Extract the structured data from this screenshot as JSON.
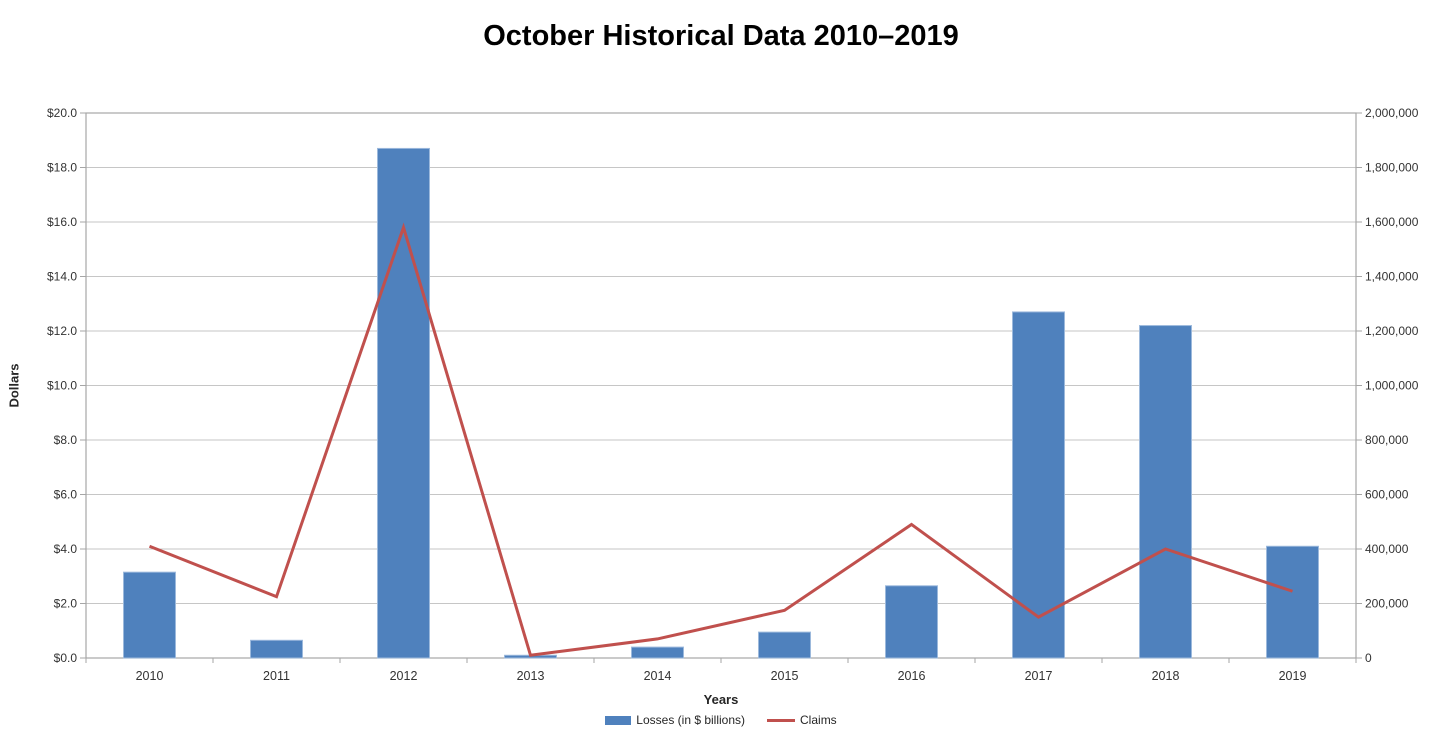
{
  "chart_data": {
    "type": "bar",
    "subtype": "combo-bar-line-dual-axis",
    "title": "October Historical Data 2010–2019",
    "xlabel": "Years",
    "categories": [
      "2010",
      "2011",
      "2012",
      "2013",
      "2014",
      "2015",
      "2016",
      "2017",
      "2018",
      "2019"
    ],
    "series": [
      {
        "name": "Losses (in $ billions)",
        "type": "bar",
        "axis": "left",
        "color": "#4F81BD",
        "values": [
          3.15,
          0.65,
          18.7,
          0.1,
          0.4,
          0.95,
          2.65,
          12.7,
          12.2,
          4.1
        ]
      },
      {
        "name": "Claims",
        "type": "line",
        "axis": "right",
        "color": "#C0504D",
        "values": [
          410000,
          225000,
          1580000,
          10000,
          70000,
          175000,
          490000,
          150000,
          400000,
          245000
        ]
      }
    ],
    "left_axis": {
      "label": "Dollars",
      "min": 0,
      "max": 20,
      "step": 2,
      "ticks": [
        "$0.0",
        "$2.0",
        "$4.0",
        "$6.0",
        "$8.0",
        "$10.0",
        "$12.0",
        "$14.0",
        "$16.0",
        "$18.0",
        "$20.0"
      ]
    },
    "right_axis": {
      "label": "",
      "min": 0,
      "max": 2000000,
      "step": 200000,
      "ticks": [
        "0",
        "200,000",
        "400,000",
        "600,000",
        "800,000",
        "1,000,000",
        "1,200,000",
        "1,400,000",
        "1,600,000",
        "1,800,000",
        "2,000,000"
      ]
    },
    "grid": true,
    "legend_position": "bottom",
    "colors": {
      "gridline": "#C6C6C6",
      "axis_line": "#A6A6A6",
      "tick_text": "#333333"
    }
  }
}
